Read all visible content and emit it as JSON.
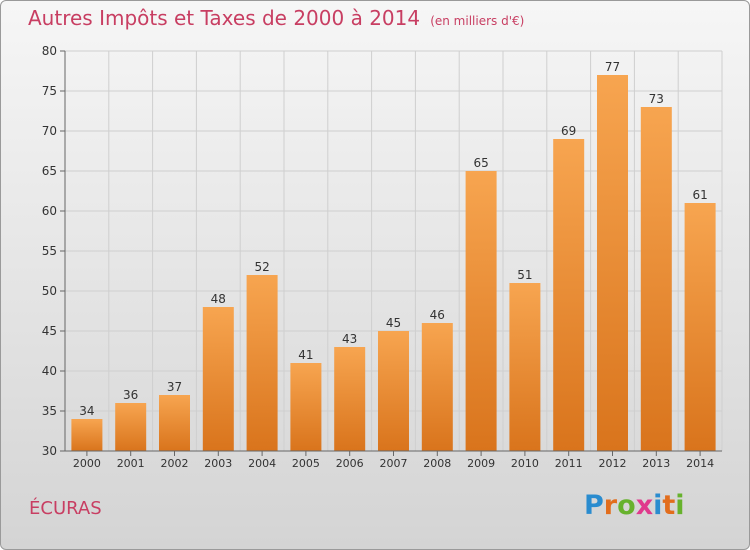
{
  "title": "Autres Impôts et Taxes de 2000 à 2014",
  "subtitle": "(en milliers d'€)",
  "place": "ÉCURAS",
  "logo": {
    "text": "Proxiti",
    "letters": [
      {
        "ch": "P",
        "color": "#2a8ccf"
      },
      {
        "ch": "r",
        "color": "#e26d1c"
      },
      {
        "ch": "o",
        "color": "#67b22d"
      },
      {
        "ch": "x",
        "color": "#e03a8c"
      },
      {
        "ch": "i",
        "color": "#2a8ccf"
      },
      {
        "ch": "t",
        "color": "#e26d1c"
      },
      {
        "ch": "i",
        "color": "#67b22d"
      }
    ]
  },
  "colors": {
    "bar_light": "#f7a550",
    "bar_dark": "#d9741c",
    "text": "#c83e62",
    "grid": "#cfcfcf"
  },
  "chart_data": {
    "type": "bar",
    "categories": [
      "2000",
      "2001",
      "2002",
      "2003",
      "2004",
      "2005",
      "2006",
      "2007",
      "2008",
      "2009",
      "2010",
      "2011",
      "2012",
      "2013",
      "2014"
    ],
    "values": [
      34,
      36,
      37,
      48,
      52,
      41,
      43,
      45,
      46,
      65,
      51,
      69,
      77,
      73,
      61
    ],
    "ylim": [
      30,
      80
    ],
    "yticks": [
      30,
      35,
      40,
      45,
      50,
      55,
      60,
      65,
      70,
      75,
      80
    ],
    "grid": true,
    "data_labels": true
  }
}
